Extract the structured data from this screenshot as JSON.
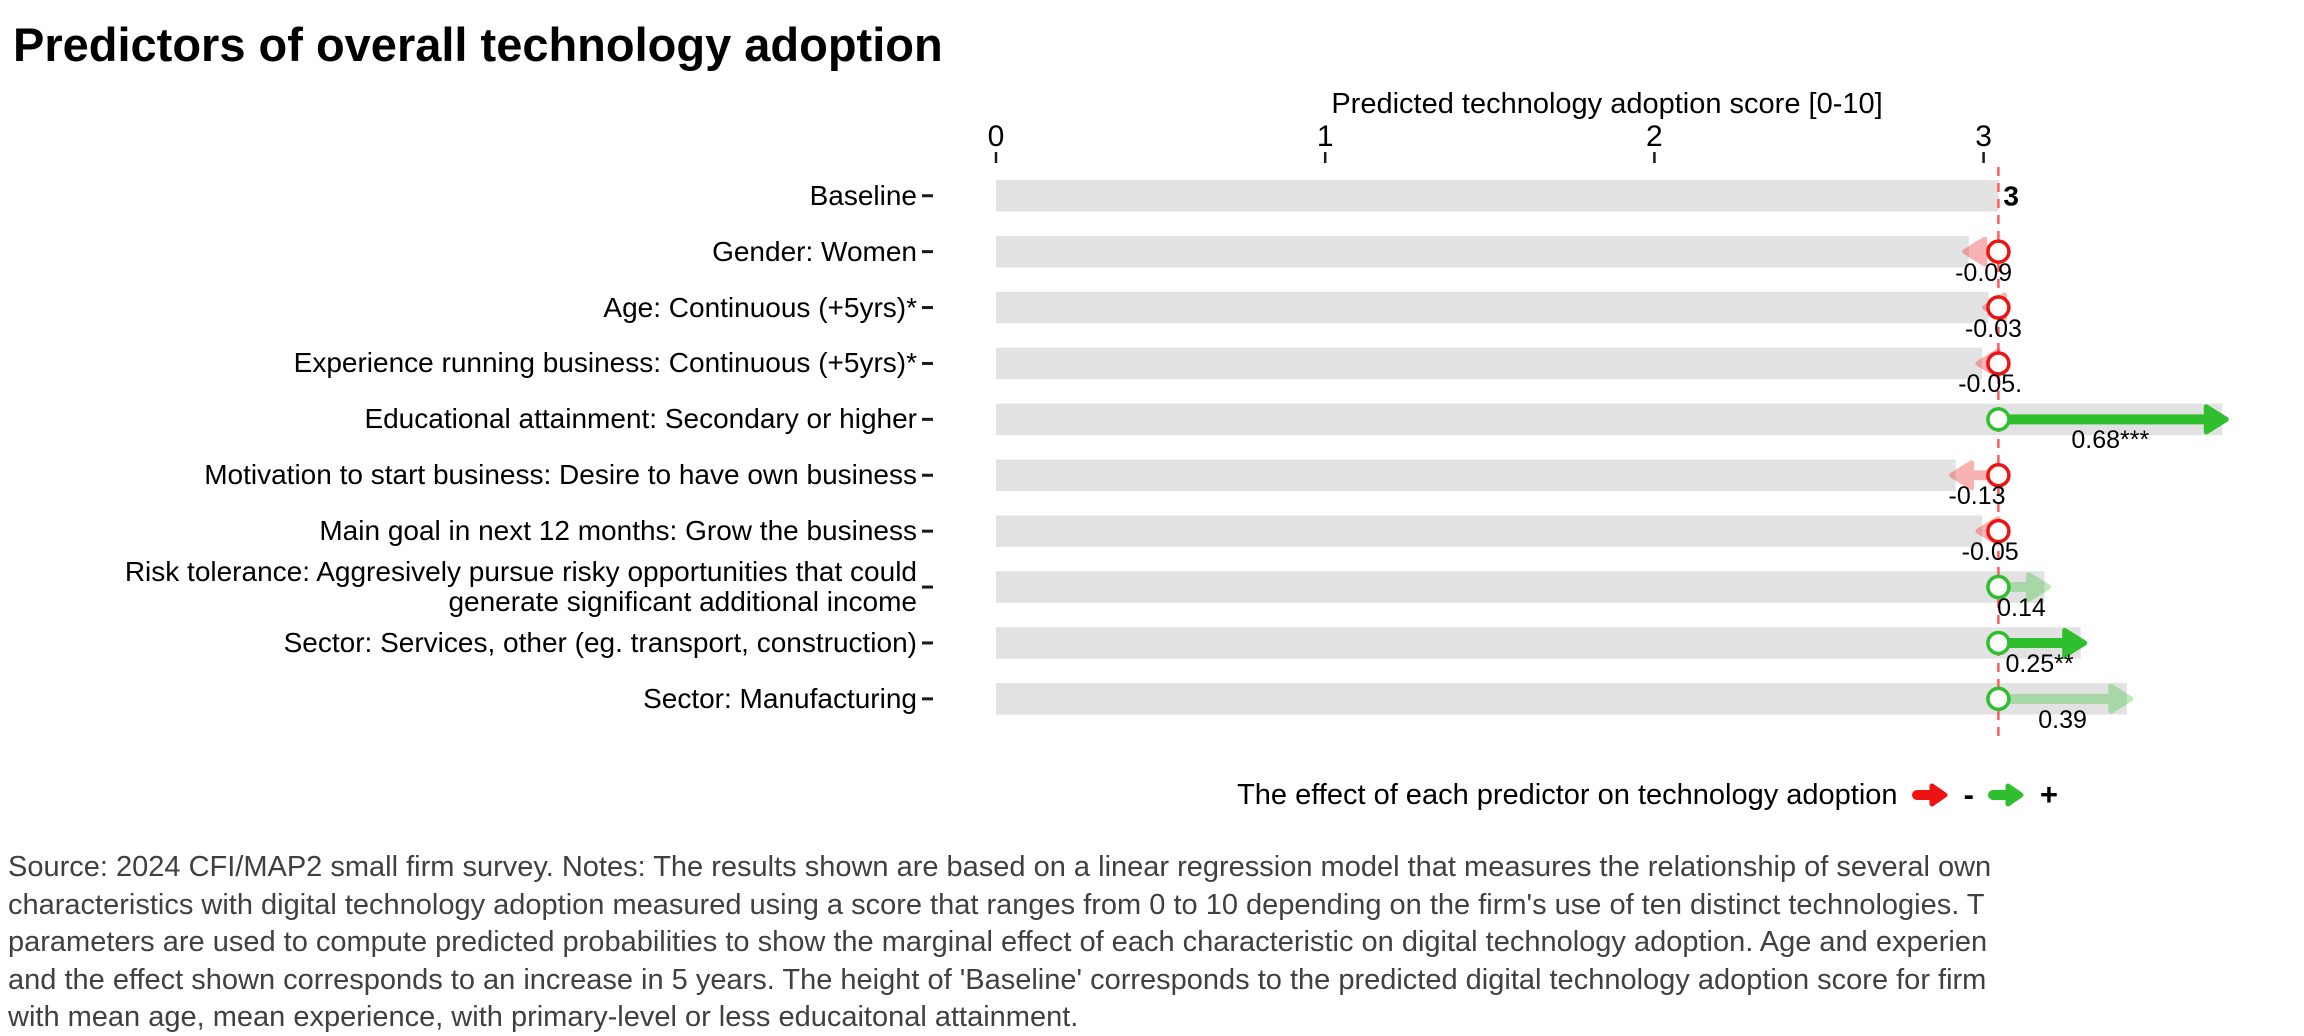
{
  "title": "Predictors of overall technology adoption",
  "chart_data": {
    "type": "bar",
    "orientation": "horizontal",
    "x_axis": {
      "label": "Predicted technology adoption score [0-10]",
      "ticks": [
        0,
        1,
        2,
        3
      ],
      "range": [
        0,
        3.75
      ],
      "position": "top"
    },
    "baseline_value": 3.045,
    "baseline_value_label": "3",
    "rows": [
      {
        "label": "Baseline",
        "effect": null,
        "value_label": "3",
        "direction": "baseline",
        "significance": null
      },
      {
        "label": "Gender: Women",
        "effect": -0.09,
        "value_label": "-0.09",
        "direction": "negative",
        "significance": "faded"
      },
      {
        "label": "Age: Continuous (+5yrs)*",
        "effect": -0.03,
        "value_label": "-0.03",
        "direction": "negative",
        "significance": "faded"
      },
      {
        "label": "Experience running business: Continuous (+5yrs)*",
        "effect": -0.05,
        "value_label": "-0.05.",
        "direction": "negative",
        "significance": "faded"
      },
      {
        "label": "Educational attainment: Secondary or higher",
        "effect": 0.68,
        "value_label": "0.68***",
        "direction": "positive",
        "significance": "solid"
      },
      {
        "label": "Motivation to start business: Desire to have own business",
        "effect": -0.13,
        "value_label": "-0.13",
        "direction": "negative",
        "significance": "faded"
      },
      {
        "label": "Main goal in next 12 months: Grow the business",
        "effect": -0.05,
        "value_label": "-0.05",
        "direction": "negative",
        "significance": "faded"
      },
      {
        "label": [
          "Risk tolerance: Aggresively pursue risky opportunities that could",
          "generate significant additional income"
        ],
        "effect": 0.14,
        "value_label": "0.14",
        "direction": "positive",
        "significance": "faded"
      },
      {
        "label": "Sector: Services, other (eg. transport, construction)",
        "effect": 0.25,
        "value_label": "0.25**",
        "direction": "positive",
        "significance": "solid"
      },
      {
        "label": "Sector: Manufacturing",
        "effect": 0.39,
        "value_label": "0.39",
        "direction": "positive",
        "significance": "faded"
      }
    ],
    "legend": {
      "text": "The effect of each predictor on technology adoption",
      "negative_symbol": "-",
      "positive_symbol": "+"
    },
    "colors": {
      "bar": "#e2e2e2",
      "positive": "#2ebe2e",
      "negative": "#ee1212",
      "baseline_line": "#ff5c5c",
      "tick": "#1a1a1a",
      "footnote_text": "#404040"
    }
  },
  "footnote_lines": [
    "Source: 2024 CFI/MAP2 small firm survey. Notes: The results shown are based on a linear regression model that measures the relationship of several own",
    "characteristics with digital technology adoption measured using a score that ranges from 0 to 10 depending on the firm's use of ten distinct technologies. T",
    "parameters are used to compute predicted probabilities to show the marginal effect of each characteristic on digital technology adoption. Age and experien",
    "and the effect shown corresponds to an increase in 5 years. The height of 'Baseline' corresponds to the predicted digital technology adoption score for firm",
    "with mean age, mean experience, with primary-level or less educaitonal attainment."
  ]
}
